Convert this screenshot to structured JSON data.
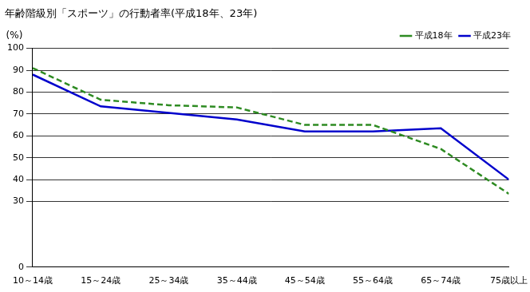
{
  "chart_data": {
    "type": "line",
    "title": "年齢階級別「スポーツ」の行動者率(平成18年、23年)",
    "y_label": "(%)",
    "categories": [
      "10～14歳",
      "15～24歳",
      "25～34歳",
      "35～44歳",
      "45～54歳",
      "55～64歳",
      "65～74歳",
      "75歳以上"
    ],
    "series": [
      {
        "name": "平成18年",
        "color": "#2e8b22",
        "line_style": "dashed",
        "marker": "none",
        "values": [
          91,
          76.5,
          74,
          73,
          65,
          65,
          54,
          33.5
        ]
      },
      {
        "name": "平成23年",
        "color": "#0000cc",
        "line_style": "solid",
        "marker": "none",
        "values": [
          88,
          73.5,
          70.5,
          67.5,
          62,
          62,
          63.5,
          40
        ]
      }
    ],
    "ylim": [
      0,
      100
    ],
    "yticks": [
      0,
      30,
      40,
      50,
      60,
      70,
      80,
      90,
      100
    ],
    "grid": true,
    "legend": "top-right"
  }
}
